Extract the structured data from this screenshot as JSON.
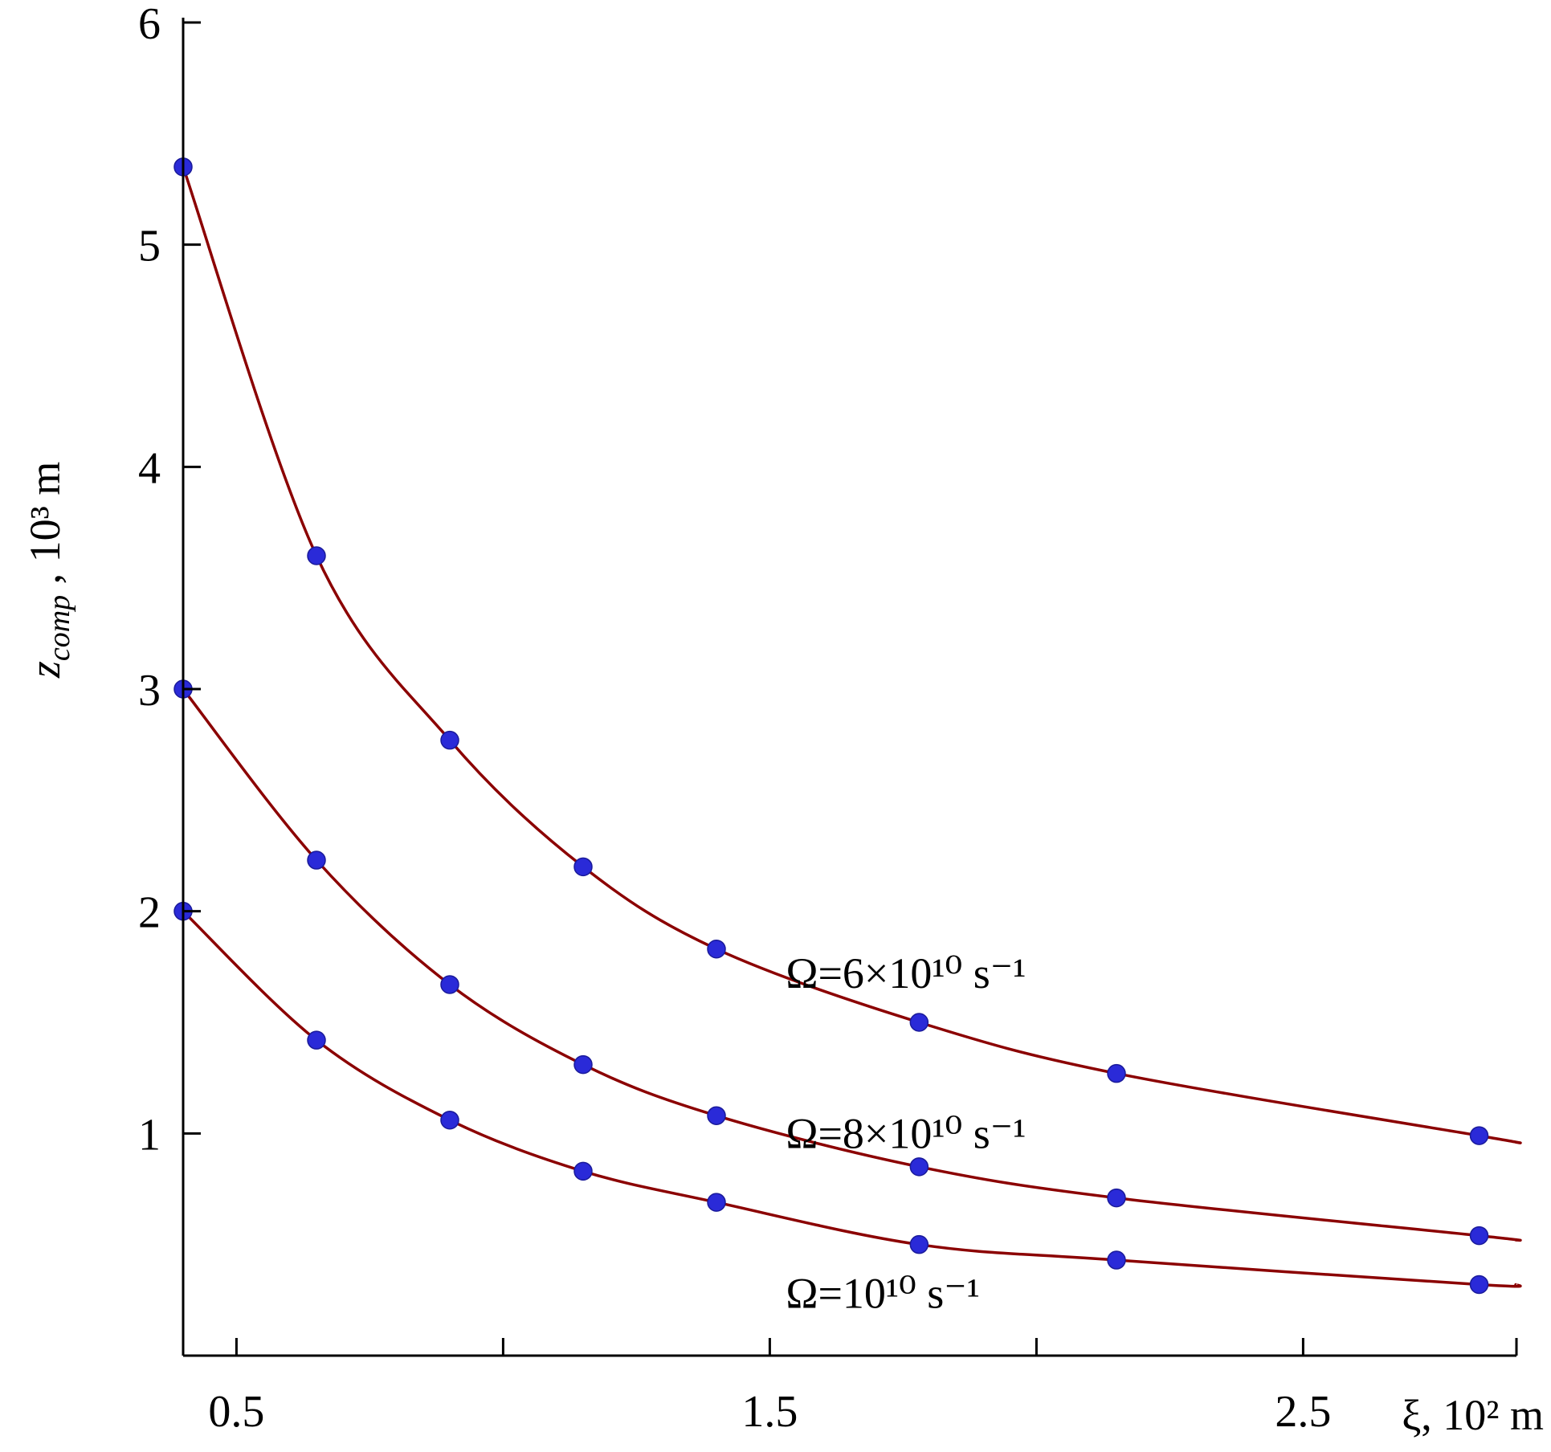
{
  "chart_data": {
    "type": "line",
    "xlabel": "ξ, 10² m",
    "ylabel_main": "z",
    "ylabel_sub": "comp",
    "ylabel_rest": " , 10³ m",
    "xlim": [
      0.4,
      2.9
    ],
    "ylim": [
      0,
      6
    ],
    "x_ticks": [
      0.5,
      1.0,
      1.5,
      2.0,
      2.5,
      2.9
    ],
    "x_tick_labels": [
      {
        "x": 0.5,
        "label": "0.5"
      },
      {
        "x": 1.5,
        "label": "1.5"
      },
      {
        "x": 2.5,
        "label": "2.5"
      }
    ],
    "y_ticks": [
      1,
      2,
      3,
      4,
      5,
      6
    ],
    "y_tick_labels": [
      "1",
      "2",
      "3",
      "4",
      "5",
      "6"
    ],
    "grid": false,
    "line_color": "#8b0000",
    "marker_color": "#2a2ad8",
    "series": [
      {
        "label": "Ω=6×10¹⁰ s⁻¹",
        "label_pos": {
          "x": 1.53,
          "y": 1.72
        },
        "x": [
          0.4,
          0.65,
          0.9,
          1.15,
          1.4,
          1.78,
          2.15,
          2.83
        ],
        "y": [
          5.35,
          3.6,
          2.77,
          2.2,
          1.83,
          1.5,
          1.27,
          0.99
        ],
        "curve_end": [
          2.9,
          0.96
        ]
      },
      {
        "label": "Ω=8×10¹⁰ s⁻¹",
        "label_pos": {
          "x": 1.53,
          "y": 1.0
        },
        "x": [
          0.4,
          0.65,
          0.9,
          1.15,
          1.4,
          1.78,
          2.15,
          2.83
        ],
        "y": [
          3.0,
          2.23,
          1.67,
          1.31,
          1.08,
          0.85,
          0.71,
          0.54
        ],
        "curve_end": [
          2.9,
          0.52
        ]
      },
      {
        "label": "Ω=10¹⁰ s⁻¹",
        "label_pos": {
          "x": 1.53,
          "y": 0.28
        },
        "x": [
          0.4,
          0.65,
          0.9,
          1.15,
          1.4,
          1.78,
          2.15,
          2.83
        ],
        "y": [
          2.0,
          1.42,
          1.06,
          0.83,
          0.69,
          0.5,
          0.43,
          0.32
        ],
        "curve_end": [
          2.9,
          0.32
        ]
      }
    ]
  }
}
